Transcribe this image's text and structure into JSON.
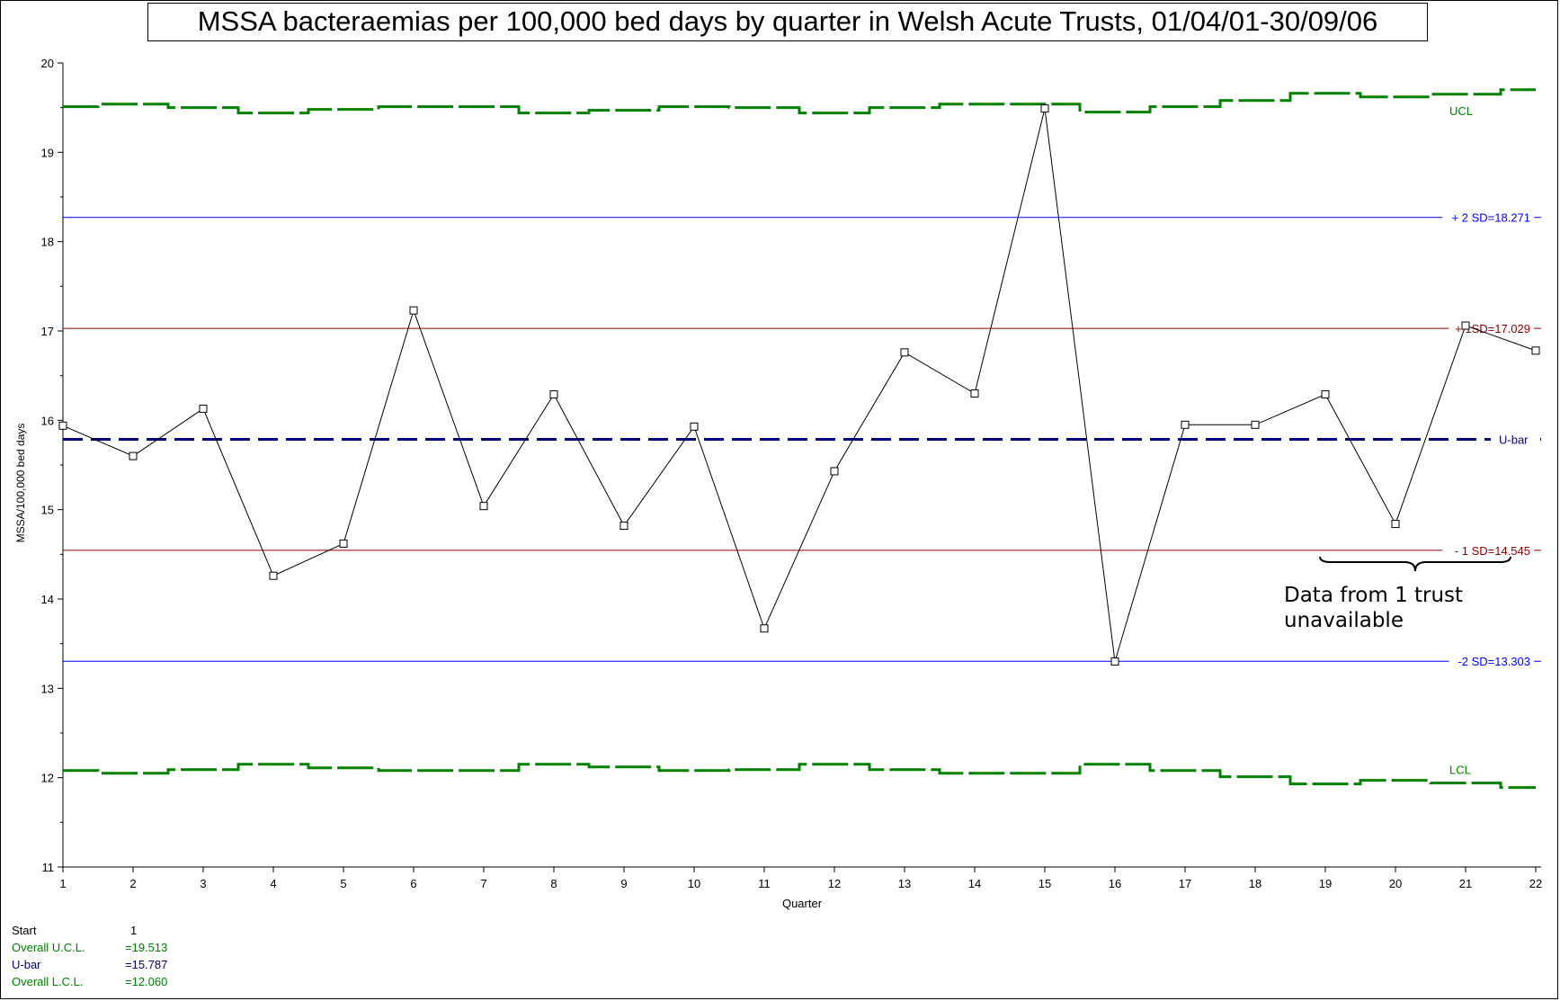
{
  "chart_data": {
    "type": "line",
    "title": "MSSA bacteraemias per 100,000 bed days by quarter in Welsh Acute Trusts, 01/04/01-30/09/06",
    "xlabel": "Quarter",
    "ylabel": "MSSA/100,000 bed days",
    "ylim": [
      11,
      20
    ],
    "y_ticks": [
      "11",
      "12",
      "13",
      "14",
      "15",
      "16",
      "17",
      "18",
      "19",
      "20"
    ],
    "x": [
      1,
      2,
      3,
      4,
      5,
      6,
      7,
      8,
      9,
      10,
      11,
      12,
      13,
      14,
      15,
      16,
      17,
      18,
      19,
      20,
      21,
      22
    ],
    "x_ticks": [
      "1",
      "2",
      "3",
      "4",
      "5",
      "6",
      "7",
      "8",
      "9",
      "10",
      "11",
      "12",
      "13",
      "14",
      "15",
      "16",
      "17",
      "18",
      "19",
      "20",
      "21",
      "22"
    ],
    "series": [
      {
        "values": [
          15.94,
          15.6,
          16.13,
          14.26,
          14.62,
          17.23,
          15.04,
          16.29,
          14.82,
          15.93,
          13.67,
          15.43,
          16.76,
          16.3,
          19.49,
          13.3,
          15.95,
          15.95,
          16.29,
          14.84,
          17.06,
          16.78
        ],
        "color": "#000000"
      }
    ],
    "ucl": {
      "label": "UCL",
      "color": "#008000",
      "values": [
        19.51,
        19.54,
        19.5,
        19.44,
        19.48,
        19.51,
        19.51,
        19.44,
        19.47,
        19.51,
        19.5,
        19.44,
        19.5,
        19.54,
        19.54,
        19.45,
        19.51,
        19.58,
        19.66,
        19.62,
        19.65,
        19.7
      ]
    },
    "lcl": {
      "label": "LCL",
      "color": "#008000",
      "values": [
        12.08,
        12.05,
        12.09,
        12.15,
        12.11,
        12.08,
        12.08,
        12.15,
        12.12,
        12.08,
        12.09,
        12.15,
        12.09,
        12.05,
        12.05,
        12.15,
        12.08,
        12.01,
        11.93,
        11.97,
        11.94,
        11.89
      ]
    },
    "reference_lines": [
      {
        "label": "U-bar",
        "value": 15.787,
        "color": "#000080",
        "style": "dashed"
      },
      {
        "label": "+ 2 SD=18.271",
        "value": 18.271,
        "color": "#0000ff",
        "style": "solid"
      },
      {
        "label": "+ 1SD=17.029",
        "value": 17.029,
        "color": "#8b0000",
        "style": "solid"
      },
      {
        "label": "- 1 SD=14.545",
        "value": 14.545,
        "color": "#8b0000",
        "style": "solid"
      },
      {
        "label": "-2 SD=13.303",
        "value": 13.303,
        "color": "#0000ff",
        "style": "solid"
      }
    ],
    "annotation": {
      "lines": [
        "Data from 1 trust",
        "unavailable"
      ],
      "x_range": [
        19,
        22
      ]
    },
    "grid": false,
    "legend": "none"
  },
  "stats": [
    {
      "label": "Start",
      "value": "1",
      "color": "#000000"
    },
    {
      "label": "Overall U.C.L.",
      "value": "=19.513",
      "color": "#008000"
    },
    {
      "label": "U-bar",
      "value": "=15.787",
      "color": "#000080"
    },
    {
      "label": "Overall L.C.L.",
      "value": "=12.060",
      "color": "#008000"
    }
  ]
}
